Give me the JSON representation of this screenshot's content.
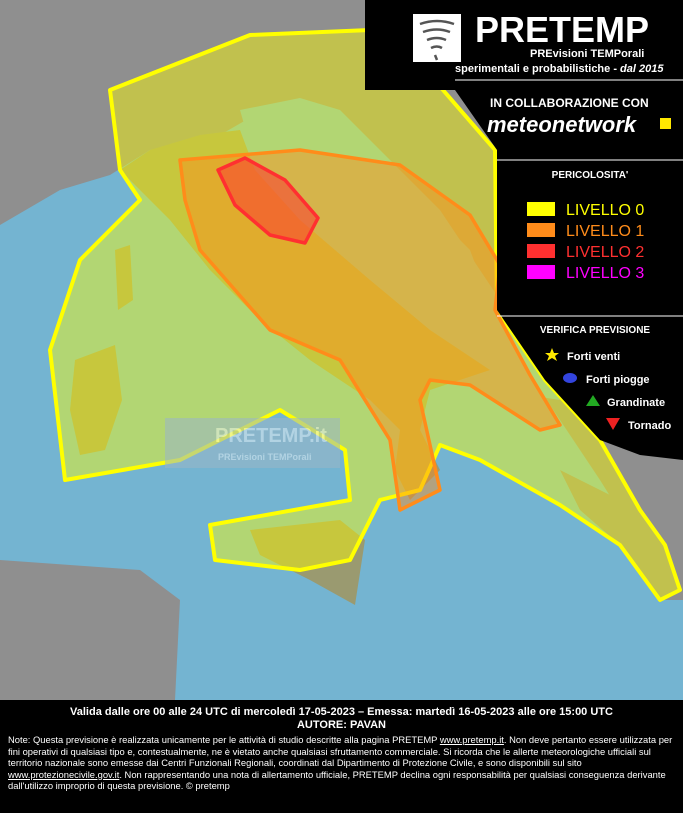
{
  "header": {
    "title": "PRETEMP",
    "subtitle": "PREvisioni TEMPorali",
    "tagline": "sperimentali e probabilistiche - ",
    "tagline_year": "dal 2015"
  },
  "collaboration": {
    "label": "IN COLLABORAZIONE CON",
    "partner": "meteonetwork"
  },
  "legend": {
    "title": "PERICOLOSITA'",
    "levels": [
      {
        "label": "LIVELLO 0",
        "color": "#ffff00"
      },
      {
        "label": "LIVELLO 1",
        "color": "#ff8c1a"
      },
      {
        "label": "LIVELLO 2",
        "color": "#ff3030"
      },
      {
        "label": "LIVELLO 3",
        "color": "#ff00ff"
      }
    ]
  },
  "verification": {
    "title": "VERIFICA PREVISIONE",
    "items": [
      "Forti venti",
      "Forti piogge",
      "Grandinate",
      "Tornado"
    ]
  },
  "watermark": {
    "title": "PRETEMP.it",
    "subtitle": "PREvisioni TEMPorali"
  },
  "footer": {
    "validity": "Valida dalle ore 00 alle 24 UTC di mercoledì 17-05-2023 – Emessa: martedì 16-05-2023 alle ore 15:00 UTC",
    "author": "AUTORE: PAVAN",
    "note": [
      "Note: Questa previsione è realizzata unicamente per le attività di studio descritte alla pagina PRETEMP ",
      "www.pretemp.it",
      ". Non deve pertanto essere utilizzata per fini operativi di qualsiasi tipo e, contestualmente, ne è vietato anche qualsiasi sfruttamento commerciale. Si ricorda che le allerte meteorologiche ufficiali sul territorio nazionale sono emesse dai Centri Funzionali Regionali, coordinati dal Dipartimento di Protezione Civile, e sono disponibili sul sito ",
      "www.protezionecivile.gov.it",
      ". Non rappresentando una nota di allertamento ufficiale, PRETEMP declina ogni responsabilità per qualsiasi conseguenza derivante dall'utilizzo improprio di questa previsione.  © pretemp"
    ]
  }
}
